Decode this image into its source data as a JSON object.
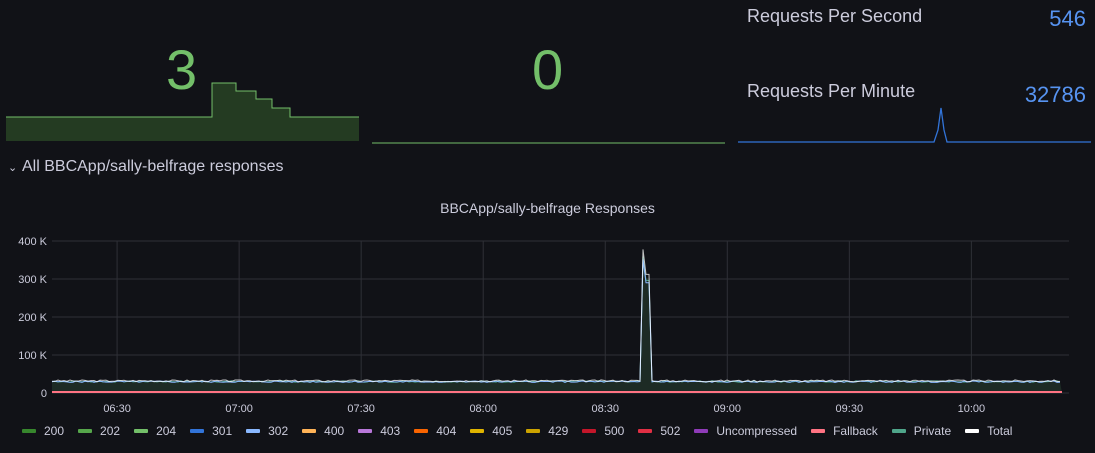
{
  "stats": {
    "panel1_value": "3",
    "panel2_value": "0",
    "rps_label": "Requests Per Second",
    "rps_value": "546",
    "rpm_label": "Requests Per Minute",
    "rpm_value": "32786"
  },
  "row": {
    "title": "All BBCApp/sally-belfrage responses"
  },
  "chart_data": {
    "type": "line",
    "title": "BBCApp/sally-belfrage Responses",
    "xlabel": "",
    "ylabel": "",
    "x_ticks": [
      "06:30",
      "07:00",
      "07:30",
      "08:00",
      "08:30",
      "09:00",
      "09:30",
      "10:00"
    ],
    "y_ticks": [
      "0",
      "100 K",
      "200 K",
      "300 K",
      "400 K"
    ],
    "ylim": [
      0,
      400000
    ],
    "xrange": [
      "06:14",
      "10:24"
    ],
    "grid": true,
    "legend_position": "bottom",
    "series": [
      {
        "name": "200",
        "color": "#37872d"
      },
      {
        "name": "202",
        "color": "#56a64b"
      },
      {
        "name": "204",
        "color": "#73bf69"
      },
      {
        "name": "301",
        "color": "#3274d9"
      },
      {
        "name": "302",
        "color": "#8ab8ff"
      },
      {
        "name": "400",
        "color": "#ffb357"
      },
      {
        "name": "403",
        "color": "#b877d9"
      },
      {
        "name": "404",
        "color": "#fa6400"
      },
      {
        "name": "405",
        "color": "#e0b400"
      },
      {
        "name": "429",
        "color": "#cca300"
      },
      {
        "name": "500",
        "color": "#c4162a"
      },
      {
        "name": "502",
        "color": "#e02f44"
      },
      {
        "name": "Uncompressed",
        "color": "#8f3bb8"
      },
      {
        "name": "Fallback",
        "color": "#ff7383"
      },
      {
        "name": "Private",
        "color": "#4fa58a"
      },
      {
        "name": "Total",
        "color": "#ffffff"
      }
    ],
    "total_series": {
      "baseline_approx": 32000,
      "spike": {
        "times": [
          "08:39",
          "08:40",
          "08:41"
        ],
        "values": [
          378000,
          378000,
          312000
        ]
      }
    }
  }
}
